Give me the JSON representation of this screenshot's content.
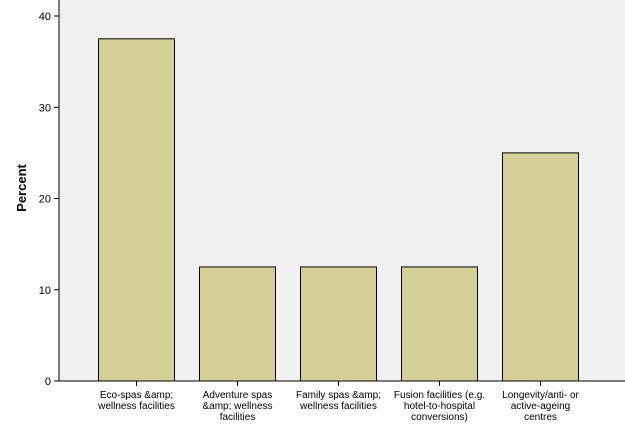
{
  "chart_data": {
    "type": "bar",
    "title": "",
    "xlabel": "",
    "ylabel": "Percent",
    "ylim": [
      0,
      40
    ],
    "yticks": [
      0,
      10,
      20,
      30,
      40
    ],
    "categories": [
      [
        "Eco-spas &amp;",
        "wellness facilities"
      ],
      [
        "Adventure spas",
        "&amp; wellness",
        "facilities"
      ],
      [
        "Family spas &amp;",
        "wellness facilities"
      ],
      [
        "Fusion facilities (e.g.",
        "hotel-to-hospital",
        "conversions)"
      ],
      [
        "Longevity/anti- or",
        "active-ageing",
        "centres"
      ]
    ],
    "values": [
      37.5,
      12.5,
      12.5,
      12.5,
      25.0
    ],
    "grid": false,
    "colors": {
      "plot_background": "#f0f0f0",
      "bar_fill": "#d4cf96",
      "bar_stroke": "#000000",
      "axis": "#000000"
    }
  }
}
